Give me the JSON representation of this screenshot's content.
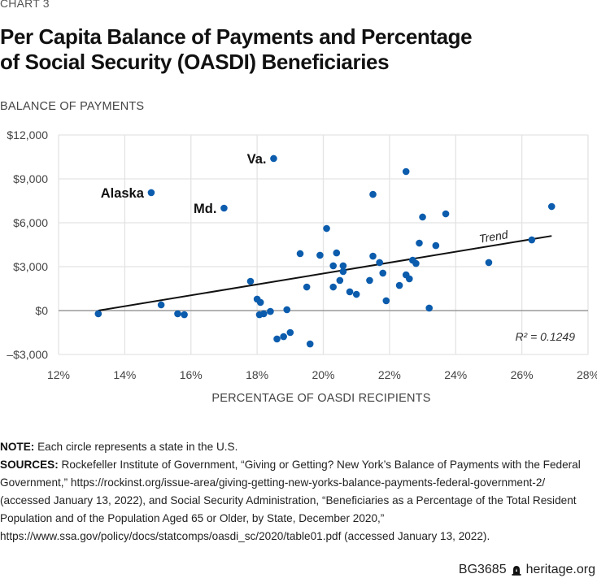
{
  "eyebrow": "CHART 3",
  "title_line1": "Per Capita Balance of Payments and Percentage",
  "title_line2": "of Social Security (OASDI) Beneficiaries",
  "note_label": "NOTE:",
  "note_text": " Each circle represents a state in the U.S.",
  "sources_label": "SOURCES:",
  "sources_text": " Rockefeller Institute of Government, “Giving or Getting? New York’s Balance of Payments with the Federal Government,” https://rockinst.org/issue-area/giving-getting-new-yorks-balance-payments-federal-government-2/ (accessed January 13, 2022), and Social Security Administration, “Beneficiaries as a Percentage of the Total Resident Population and of the Population Aged 65 or Older, by State, December 2020,” https://www.ssa.gov/policy/docs/statcomps/oasdi_sc/2020/table01.pdf (accessed January 13, 2022).",
  "footer": {
    "code": "BG3685",
    "icon": "liberty-bell-icon",
    "site": "heritage.org"
  },
  "colors": {
    "point": "#0b5cad",
    "trend": "#111111",
    "grid": "#e3e3e3",
    "zero_line": "#9a9a9a"
  },
  "chart_data": {
    "type": "scatter",
    "title": "Per Capita Balance of Payments and Percentage of Social Security (OASDI) Beneficiaries",
    "xlabel": "PERCENTAGE OF OASDI RECIPIENTS",
    "ylabel": "BALANCE OF PAYMENTS",
    "xlim": [
      12,
      28
    ],
    "ylim": [
      -3000,
      12000
    ],
    "x_ticks": [
      12,
      14,
      16,
      18,
      20,
      22,
      24,
      26,
      28
    ],
    "x_tick_labels": [
      "12%",
      "14%",
      "16%",
      "18%",
      "20%",
      "22%",
      "24%",
      "26%",
      "28%"
    ],
    "y_ticks": [
      -3000,
      0,
      3000,
      6000,
      9000,
      12000
    ],
    "y_tick_labels": [
      "–$3,000",
      "$0",
      "$3,000",
      "$6,000",
      "$9,000",
      "$12,000"
    ],
    "grid": true,
    "points": [
      {
        "x": 13.2,
        "y": -220
      },
      {
        "x": 14.8,
        "y": 8060,
        "label": "Alaska"
      },
      {
        "x": 15.1,
        "y": 390
      },
      {
        "x": 15.6,
        "y": -220
      },
      {
        "x": 15.8,
        "y": -280
      },
      {
        "x": 17.0,
        "y": 7000,
        "label": "Md."
      },
      {
        "x": 17.8,
        "y": 2000
      },
      {
        "x": 18.0,
        "y": 780
      },
      {
        "x": 18.1,
        "y": 560
      },
      {
        "x": 18.07,
        "y": -280
      },
      {
        "x": 18.2,
        "y": -220
      },
      {
        "x": 18.4,
        "y": -60
      },
      {
        "x": 18.5,
        "y": 10390,
        "label": "Va."
      },
      {
        "x": 18.6,
        "y": -1940
      },
      {
        "x": 18.8,
        "y": -1780
      },
      {
        "x": 18.9,
        "y": 60
      },
      {
        "x": 19.0,
        "y": -1500
      },
      {
        "x": 19.3,
        "y": 3890
      },
      {
        "x": 19.5,
        "y": 1610
      },
      {
        "x": 19.6,
        "y": -2280
      },
      {
        "x": 19.9,
        "y": 3780
      },
      {
        "x": 20.1,
        "y": 5610
      },
      {
        "x": 20.3,
        "y": 3060
      },
      {
        "x": 20.3,
        "y": 1610
      },
      {
        "x": 20.4,
        "y": 3940
      },
      {
        "x": 20.5,
        "y": 2060
      },
      {
        "x": 20.6,
        "y": 3060
      },
      {
        "x": 20.6,
        "y": 2670
      },
      {
        "x": 20.8,
        "y": 1280
      },
      {
        "x": 21.0,
        "y": 1110
      },
      {
        "x": 21.4,
        "y": 2060
      },
      {
        "x": 21.5,
        "y": 7940
      },
      {
        "x": 21.5,
        "y": 3720
      },
      {
        "x": 21.7,
        "y": 3280
      },
      {
        "x": 21.8,
        "y": 2560
      },
      {
        "x": 21.9,
        "y": 670
      },
      {
        "x": 22.3,
        "y": 1720
      },
      {
        "x": 22.5,
        "y": 9500
      },
      {
        "x": 22.5,
        "y": 2440
      },
      {
        "x": 22.6,
        "y": 2170
      },
      {
        "x": 22.7,
        "y": 3440
      },
      {
        "x": 22.8,
        "y": 3220
      },
      {
        "x": 22.9,
        "y": 4610
      },
      {
        "x": 23.0,
        "y": 6390
      },
      {
        "x": 23.2,
        "y": 170
      },
      {
        "x": 23.4,
        "y": 4440
      },
      {
        "x": 23.7,
        "y": 6610
      },
      {
        "x": 25.0,
        "y": 3280
      },
      {
        "x": 26.3,
        "y": 4830
      },
      {
        "x": 26.9,
        "y": 7110
      }
    ],
    "trend": {
      "label": "Trend",
      "start": {
        "x": 13.2,
        "y": 0
      },
      "end": {
        "x": 26.9,
        "y": 5100
      }
    },
    "annotation": "R² = 0.1249"
  }
}
